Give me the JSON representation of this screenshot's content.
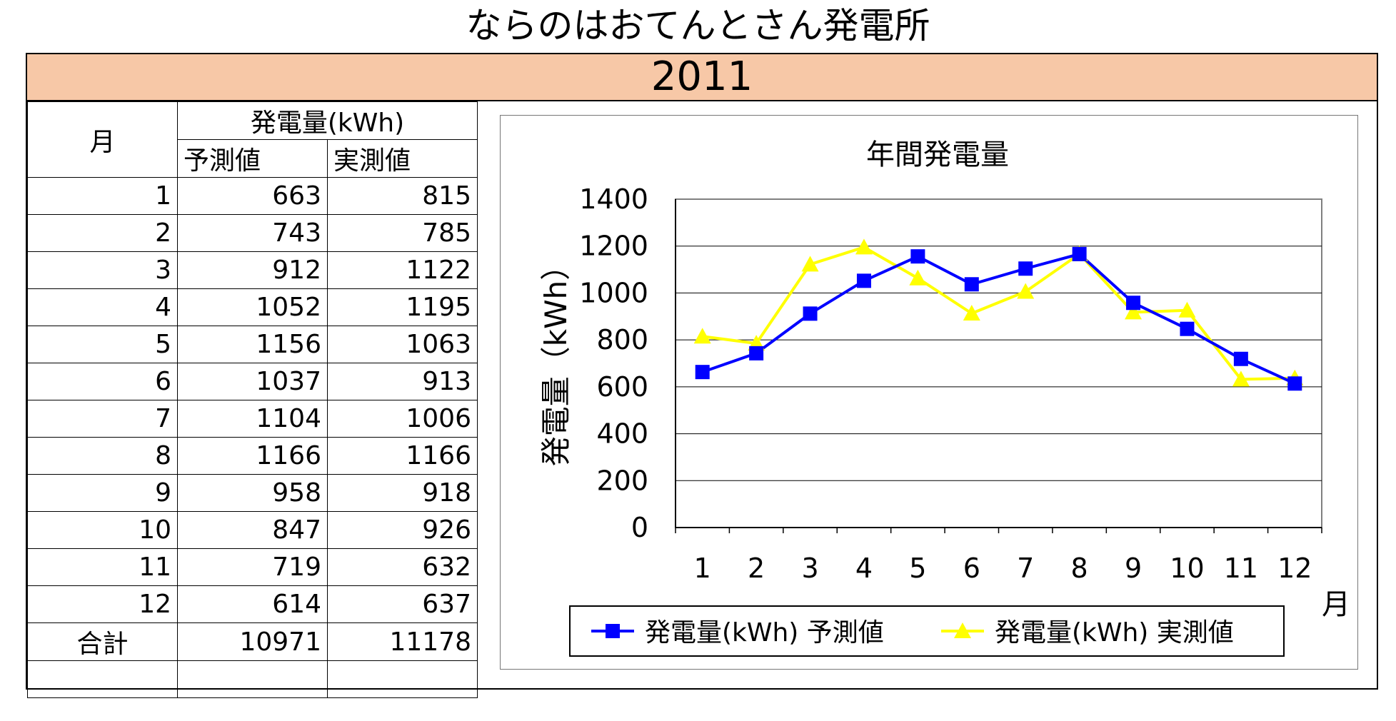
{
  "page_title": "ならのはおてんとさん発電所",
  "year": "2011",
  "table": {
    "month_header": "月",
    "group_header": "発電量(kWh)",
    "col_forecast": "予測値",
    "col_actual": "実測値",
    "rows": [
      {
        "month": "1",
        "forecast": "663",
        "actual": "815"
      },
      {
        "month": "2",
        "forecast": "743",
        "actual": "785"
      },
      {
        "month": "3",
        "forecast": "912",
        "actual": "1122"
      },
      {
        "month": "4",
        "forecast": "1052",
        "actual": "1195"
      },
      {
        "month": "5",
        "forecast": "1156",
        "actual": "1063"
      },
      {
        "month": "6",
        "forecast": "1037",
        "actual": "913"
      },
      {
        "month": "7",
        "forecast": "1104",
        "actual": "1006"
      },
      {
        "month": "8",
        "forecast": "1166",
        "actual": "1166"
      },
      {
        "month": "9",
        "forecast": "958",
        "actual": "918"
      },
      {
        "month": "10",
        "forecast": "847",
        "actual": "926"
      },
      {
        "month": "11",
        "forecast": "719",
        "actual": "632"
      },
      {
        "month": "12",
        "forecast": "614",
        "actual": "637"
      }
    ],
    "total_label": "合計",
    "total_forecast": "10971",
    "total_actual": "11178"
  },
  "chart_data": {
    "type": "line",
    "title": "年間発電量",
    "xlabel": "月",
    "ylabel": "発電量（kWh）",
    "categories": [
      "1",
      "2",
      "3",
      "4",
      "5",
      "6",
      "7",
      "8",
      "9",
      "10",
      "11",
      "12"
    ],
    "ylim": [
      0,
      1400
    ],
    "yticks": [
      0,
      200,
      400,
      600,
      800,
      1000,
      1200,
      1400
    ],
    "grid": true,
    "legend_position": "bottom",
    "series": [
      {
        "name": "発電量(kWh) 予測値",
        "color": "#0000ff",
        "marker": "square",
        "values": [
          663,
          743,
          912,
          1052,
          1156,
          1037,
          1104,
          1166,
          958,
          847,
          719,
          614
        ]
      },
      {
        "name": "発電量(kWh) 実測値",
        "color": "#ffff00",
        "marker": "triangle",
        "values": [
          815,
          785,
          1122,
          1195,
          1063,
          913,
          1006,
          1166,
          918,
          926,
          632,
          637
        ]
      }
    ]
  }
}
